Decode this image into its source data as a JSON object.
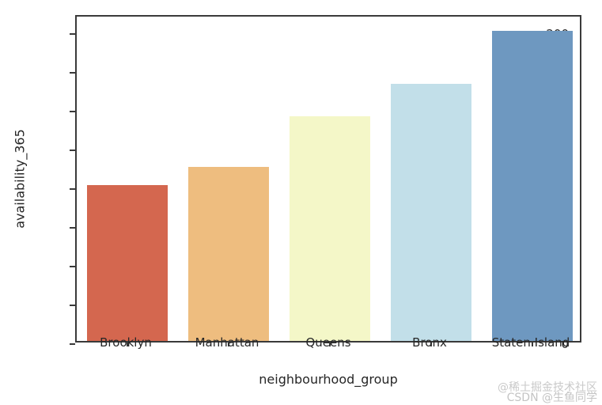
{
  "chart_data": {
    "type": "bar",
    "categories": [
      "Brooklyn",
      "Manhattan",
      "Queens",
      "Bronx",
      "Staten Island"
    ],
    "values": [
      100.2,
      112.0,
      144.5,
      165.7,
      199.7
    ],
    "bar_colors": [
      "#d4674f",
      "#eebd7f",
      "#f4f7c8",
      "#c2dfe9",
      "#6e98c0"
    ],
    "title": "",
    "xlabel": "neighbourhood_group",
    "ylabel": "availability_365",
    "ylim": [
      0,
      211
    ],
    "yticks": [
      0,
      25,
      50,
      75,
      100,
      125,
      150,
      175,
      200
    ],
    "grid": false,
    "legend": "none",
    "spine_color": "#3a3a3a",
    "background_color": "#ffffff"
  },
  "watermark": {
    "line1": "@稀土掘金技术社区",
    "line2": "CSDN @生鱼同学"
  }
}
